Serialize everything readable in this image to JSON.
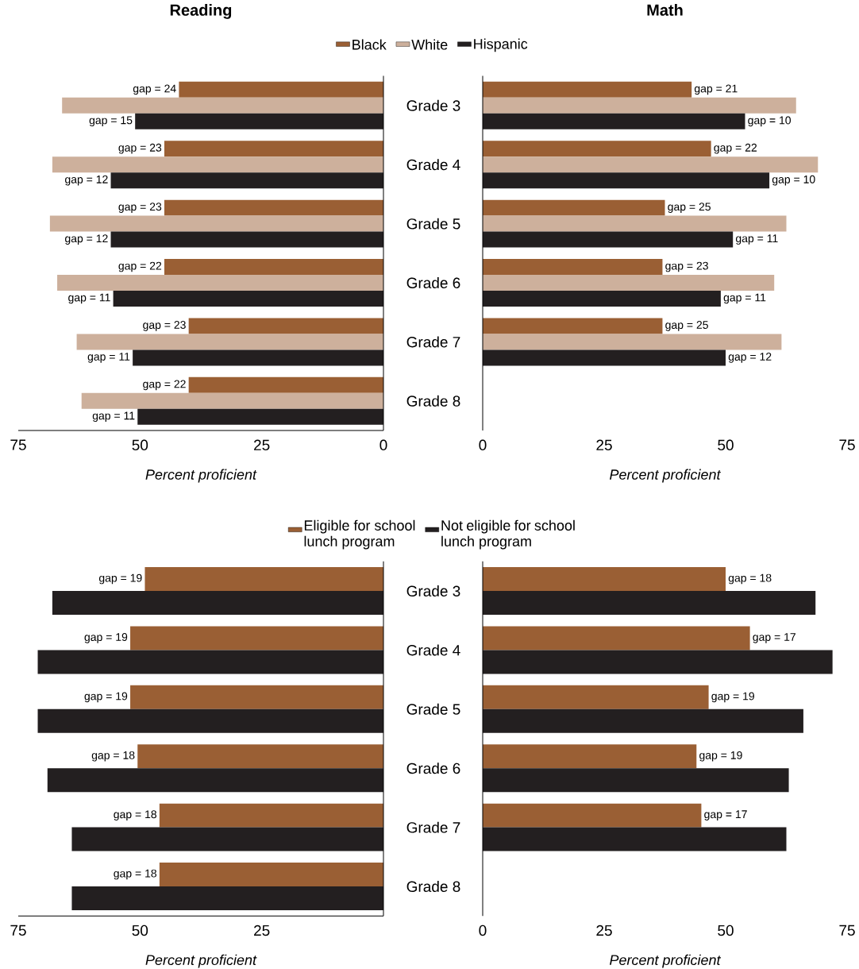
{
  "chart_data": [
    {
      "type": "bar",
      "orientation": "horizontal",
      "title": "Reading",
      "xlabel": "Percent proficient",
      "categories": [
        null,
        null,
        null,
        null,
        null,
        null
      ],
      "xlim": [
        75,
        0
      ],
      "xticks": [
        75,
        50,
        25,
        0
      ],
      "tick_labels": "x",
      "legend": "top",
      "series": [
        {
          "name": "Black",
          "color": "#9a5f34",
          "values": [
            42,
            45,
            45,
            45,
            40,
            40
          ]
        },
        {
          "name": "White",
          "color": "#cdb09c",
          "values": [
            66,
            68,
            68.5,
            67,
            63,
            62
          ]
        },
        {
          "name": "Hispanic",
          "color": "#231f20",
          "values": [
            51,
            56,
            56,
            55.5,
            51.5,
            50.5
          ]
        }
      ],
      "annotations": [
        "gap = 24",
        "gap = 15",
        "gap = 23",
        "gap = 12",
        "gap = 23",
        "gap = 12",
        "gap = 22",
        "gap = 11",
        "gap = 23",
        "gap = 11",
        "gap = 22",
        "gap = 11"
      ]
    },
    {
      "type": "bar",
      "orientation": "horizontal",
      "title": "Math",
      "xlabel": "Percent proficient",
      "categories": [
        "Grade 3",
        "Grade 4",
        "Grade 5",
        "Grade 6",
        "Grade 7",
        "Grade 8"
      ],
      "xlim": [
        0,
        75
      ],
      "xticks": [
        0,
        25,
        50,
        75
      ],
      "series": [
        {
          "color": "#9a5f34",
          "values": [
            43,
            47,
            37.5,
            37,
            37,
            null
          ]
        },
        {
          "color": "#cdb09c",
          "values": [
            64.5,
            69,
            62.5,
            60,
            61.5,
            null
          ]
        },
        {
          "color": "#231f20",
          "values": [
            54,
            59,
            51.5,
            49,
            50,
            null
          ]
        }
      ],
      "annotations": [
        "gap = 21",
        "gap = 10",
        "gap = 22",
        "gap = 10",
        "gap = 25",
        "gap = 11",
        "gap = 23",
        "gap = 11",
        "gap = 25",
        "gap = 12"
      ]
    },
    {
      "type": "bar",
      "orientation": "horizontal",
      "xlabel": "Percent proficient",
      "categories": [
        null,
        null,
        null,
        null,
        null,
        null
      ],
      "xlim": [
        75,
        0
      ],
      "xticks": [
        75,
        50,
        25
      ],
      "tick_labels": "x",
      "legend": "top",
      "series": [
        {
          "name": "Eligible for school lunch program",
          "color": "#9a5f34",
          "values": [
            49,
            52,
            52,
            50.5,
            46,
            46
          ]
        },
        {
          "name": "Not eligible for school lunch program",
          "color": "#231f20",
          "values": [
            68,
            71,
            71,
            69,
            64,
            64
          ]
        }
      ],
      "annotations": [
        "gap = 19",
        "gap = 19",
        "gap = 19",
        "gap = 18",
        "gap = 18",
        "gap = 18"
      ]
    },
    {
      "type": "bar",
      "orientation": "horizontal",
      "xlabel": "Percent proficient",
      "categories": [
        "Grade 3",
        "Grade 4",
        "Grade 5",
        "Grade 6",
        "Grade 7",
        "Grade 8"
      ],
      "xlim": [
        0,
        75
      ],
      "xticks": [
        0,
        25,
        50,
        75
      ],
      "series": [
        {
          "color": "#9a5f34",
          "values": [
            50,
            55,
            46.5,
            44,
            45,
            null
          ]
        },
        {
          "color": "#231f20",
          "values": [
            68.5,
            72,
            66,
            63,
            62.5,
            null
          ]
        }
      ],
      "annotations": [
        "gap = 18",
        "gap = 17",
        "gap = 19",
        "gap = 19",
        "gap = 17"
      ]
    }
  ]
}
